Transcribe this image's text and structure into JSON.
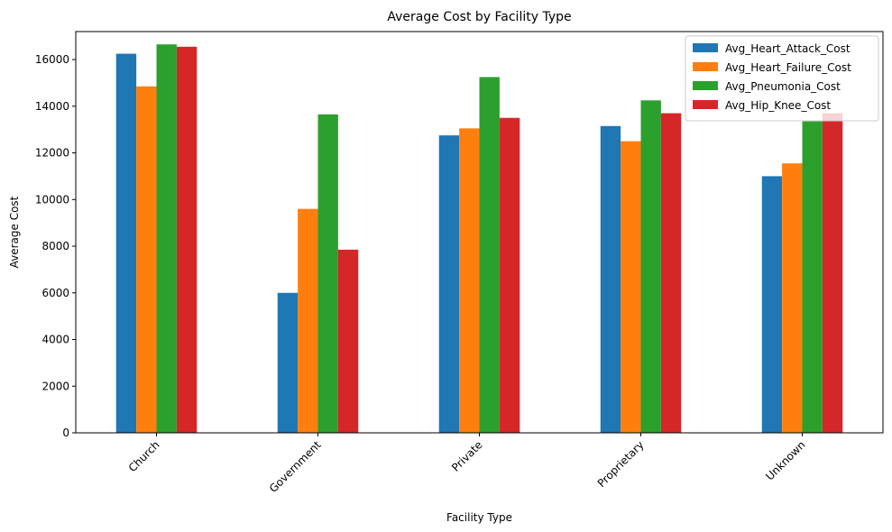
{
  "chart_data": {
    "type": "bar",
    "title": "Average Cost by Facility Type",
    "xlabel": "Facility Type",
    "ylabel": "Average Cost",
    "categories": [
      "Church",
      "Government",
      "Private",
      "Proprietary",
      "Unknown"
    ],
    "ylim": [
      0,
      17200
    ],
    "yticks": [
      0,
      2000,
      4000,
      6000,
      8000,
      10000,
      12000,
      14000,
      16000
    ],
    "legend_position": "top-right",
    "grid": false,
    "series": [
      {
        "name": "Avg_Heart_Attack_Cost",
        "color": "#1f77b4",
        "values": [
          16250,
          6000,
          12750,
          13150,
          11000
        ]
      },
      {
        "name": "Avg_Heart_Failure_Cost",
        "color": "#ff7f0e",
        "values": [
          14850,
          9600,
          13050,
          12500,
          11550
        ]
      },
      {
        "name": "Avg_Pneumonia_Cost",
        "color": "#2ca02c",
        "values": [
          16650,
          13650,
          15250,
          14250,
          13350
        ]
      },
      {
        "name": "Avg_Hip_Knee_Cost",
        "color": "#d62728",
        "values": [
          16550,
          7850,
          13500,
          13700,
          13700
        ]
      }
    ]
  }
}
